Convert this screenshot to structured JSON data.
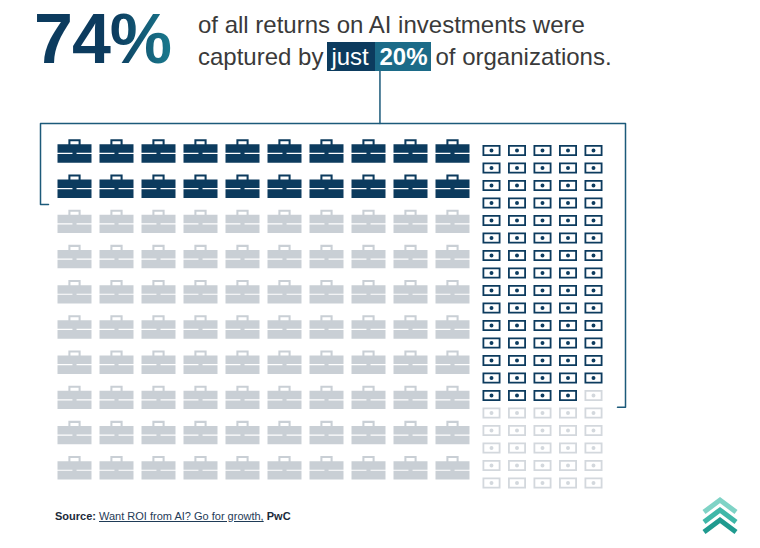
{
  "chart_data": {
    "type": "waffle",
    "title": "74%",
    "subtitle": {
      "lines": [
        "of all returns on AI investments were",
        "captured by"
      ],
      "highlight": "just 20%",
      "end": "of organizations."
    },
    "series": [
      {
        "marker": "briefcase",
        "values": [
          20,
          80
        ],
        "colors": [
          "#0c3b5e",
          "#c9cfd5"
        ]
      },
      {
        "marker": "banknote",
        "values": [
          74,
          26
        ],
        "colors": [
          "#0c3b5e",
          "#d3d8dd"
        ]
      }
    ],
    "source": {
      "label": "Source:",
      "title": "Want ROI from AI? Go for growth,",
      "publisher": "PwC"
    }
  }
}
